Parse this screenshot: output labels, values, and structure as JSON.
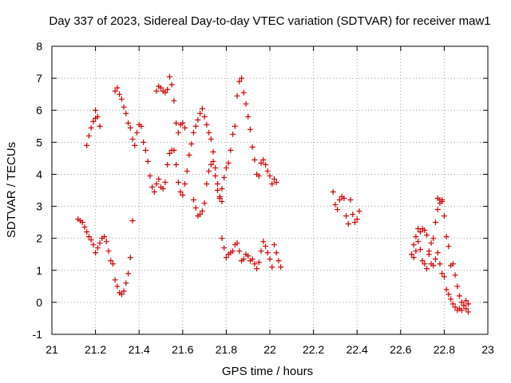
{
  "chart_data": {
    "type": "scatter",
    "title": "Day 337 of 2023, Sidereal Day-to-day VTEC variation (SDTVAR) for receiver maw1",
    "xlabel": "GPS time / hours",
    "ylabel": "SDTVAR / TECUs",
    "xlim": [
      21,
      23
    ],
    "ylim": [
      -1,
      8
    ],
    "xticks": [
      21,
      21.2,
      21.4,
      21.6,
      21.8,
      22,
      22.2,
      22.4,
      22.6,
      22.8,
      23
    ],
    "xtick_labels": [
      "21",
      "21.2",
      "21.4",
      "21.6",
      "21.8",
      "22",
      "22.2",
      "22.4",
      "22.6",
      "22.8",
      "23"
    ],
    "yticks": [
      -1,
      0,
      1,
      2,
      3,
      4,
      5,
      6,
      7,
      8
    ],
    "ytick_labels": [
      "-1",
      "0",
      "1",
      "2",
      "3",
      "4",
      "5",
      "6",
      "7",
      "8"
    ],
    "grid": true,
    "marker": "plus",
    "color": "#d40000",
    "series": [
      {
        "name": "maw1",
        "points": [
          [
            21.12,
            2.6
          ],
          [
            21.13,
            2.55
          ],
          [
            21.14,
            2.5
          ],
          [
            21.15,
            2.35
          ],
          [
            21.16,
            2.2
          ],
          [
            21.17,
            2.05
          ],
          [
            21.18,
            1.95
          ],
          [
            21.19,
            1.8
          ],
          [
            21.2,
            1.55
          ],
          [
            21.21,
            1.7
          ],
          [
            21.22,
            1.85
          ],
          [
            21.23,
            2.0
          ],
          [
            21.24,
            2.05
          ],
          [
            21.25,
            1.9
          ],
          [
            21.26,
            1.6
          ],
          [
            21.27,
            1.3
          ],
          [
            21.28,
            1.2
          ],
          [
            21.16,
            4.9
          ],
          [
            21.17,
            5.2
          ],
          [
            21.18,
            5.45
          ],
          [
            21.19,
            5.65
          ],
          [
            21.2,
            5.75
          ],
          [
            21.2,
            6.0
          ],
          [
            21.22,
            5.5
          ],
          [
            21.21,
            5.8
          ],
          [
            21.29,
            0.7
          ],
          [
            21.3,
            0.5
          ],
          [
            21.31,
            0.3
          ],
          [
            21.32,
            0.25
          ],
          [
            21.33,
            0.35
          ],
          [
            21.34,
            0.6
          ],
          [
            21.35,
            0.9
          ],
          [
            21.36,
            1.4
          ],
          [
            21.37,
            2.55
          ],
          [
            21.29,
            6.6
          ],
          [
            21.3,
            6.7
          ],
          [
            21.31,
            6.5
          ],
          [
            21.32,
            6.35
          ],
          [
            21.33,
            6.1
          ],
          [
            21.34,
            5.9
          ],
          [
            21.35,
            5.6
          ],
          [
            21.36,
            5.45
          ],
          [
            21.37,
            5.1
          ],
          [
            21.38,
            4.9
          ],
          [
            21.39,
            5.3
          ],
          [
            21.4,
            5.55
          ],
          [
            21.41,
            5.5
          ],
          [
            21.42,
            5.0
          ],
          [
            21.43,
            4.75
          ],
          [
            21.44,
            4.4
          ],
          [
            21.45,
            3.95
          ],
          [
            21.46,
            3.6
          ],
          [
            21.47,
            3.45
          ],
          [
            21.48,
            3.7
          ],
          [
            21.49,
            3.85
          ],
          [
            21.5,
            3.6
          ],
          [
            21.51,
            3.55
          ],
          [
            21.52,
            3.75
          ],
          [
            21.53,
            4.3
          ],
          [
            21.48,
            6.6
          ],
          [
            21.49,
            6.75
          ],
          [
            21.5,
            6.7
          ],
          [
            21.51,
            6.6
          ],
          [
            21.52,
            6.55
          ],
          [
            21.53,
            6.65
          ],
          [
            21.54,
            7.05
          ],
          [
            21.55,
            6.8
          ],
          [
            21.56,
            6.3
          ],
          [
            21.57,
            5.6
          ],
          [
            21.58,
            5.3
          ],
          [
            21.59,
            5.55
          ],
          [
            21.6,
            5.6
          ],
          [
            21.61,
            5.45
          ],
          [
            21.54,
            4.65
          ],
          [
            21.55,
            4.75
          ],
          [
            21.56,
            4.75
          ],
          [
            21.57,
            4.3
          ],
          [
            21.58,
            3.75
          ],
          [
            21.59,
            3.45
          ],
          [
            21.6,
            3.35
          ],
          [
            21.61,
            3.7
          ],
          [
            21.62,
            4.1
          ],
          [
            21.63,
            4.6
          ],
          [
            21.64,
            4.95
          ],
          [
            21.65,
            5.3
          ],
          [
            21.66,
            5.5
          ],
          [
            21.67,
            5.7
          ],
          [
            21.68,
            5.9
          ],
          [
            21.69,
            6.05
          ],
          [
            21.7,
            5.8
          ],
          [
            21.71,
            5.55
          ],
          [
            21.72,
            5.3
          ],
          [
            21.73,
            5.1
          ],
          [
            21.74,
            4.7
          ],
          [
            21.75,
            4.2
          ],
          [
            21.76,
            3.7
          ],
          [
            21.77,
            3.3
          ],
          [
            21.78,
            3.15
          ],
          [
            21.65,
            3.2
          ],
          [
            21.66,
            2.95
          ],
          [
            21.67,
            2.7
          ],
          [
            21.68,
            2.75
          ],
          [
            21.69,
            2.85
          ],
          [
            21.7,
            3.1
          ],
          [
            21.71,
            3.7
          ],
          [
            21.72,
            4.1
          ],
          [
            21.73,
            4.3
          ],
          [
            21.74,
            4.4
          ],
          [
            21.75,
            3.95
          ],
          [
            21.76,
            3.5
          ],
          [
            21.77,
            3.25
          ],
          [
            21.78,
            3.55
          ],
          [
            21.79,
            3.9
          ],
          [
            21.78,
            2.0
          ],
          [
            21.79,
            1.7
          ],
          [
            21.8,
            1.4
          ],
          [
            21.81,
            1.5
          ],
          [
            21.82,
            1.55
          ],
          [
            21.83,
            1.6
          ],
          [
            21.84,
            1.8
          ],
          [
            21.85,
            1.85
          ],
          [
            21.86,
            1.6
          ],
          [
            21.87,
            1.3
          ],
          [
            21.88,
            1.35
          ],
          [
            21.89,
            1.5
          ],
          [
            21.9,
            1.45
          ],
          [
            21.91,
            1.3
          ],
          [
            21.92,
            1.35
          ],
          [
            21.93,
            1.2
          ],
          [
            21.94,
            1.05
          ],
          [
            21.95,
            1.25
          ],
          [
            21.96,
            1.6
          ],
          [
            21.97,
            1.9
          ],
          [
            21.98,
            1.75
          ],
          [
            21.99,
            1.55
          ],
          [
            22.0,
            1.35
          ],
          [
            22.01,
            1.1
          ],
          [
            22.02,
            1.8
          ],
          [
            22.03,
            1.55
          ],
          [
            22.04,
            1.3
          ],
          [
            22.05,
            1.1
          ],
          [
            21.8,
            4.2
          ],
          [
            21.81,
            4.35
          ],
          [
            21.82,
            4.75
          ],
          [
            21.83,
            5.25
          ],
          [
            21.84,
            5.5
          ],
          [
            21.85,
            6.45
          ],
          [
            21.86,
            6.9
          ],
          [
            21.87,
            7.0
          ],
          [
            21.88,
            6.55
          ],
          [
            21.89,
            6.2
          ],
          [
            21.9,
            5.8
          ],
          [
            21.91,
            5.4
          ],
          [
            21.92,
            4.85
          ],
          [
            21.93,
            4.45
          ],
          [
            21.94,
            4.0
          ],
          [
            21.95,
            3.95
          ],
          [
            21.96,
            4.35
          ],
          [
            21.97,
            4.45
          ],
          [
            21.98,
            4.3
          ],
          [
            21.99,
            4.1
          ],
          [
            22.0,
            3.95
          ],
          [
            22.01,
            3.7
          ],
          [
            22.02,
            3.85
          ],
          [
            22.03,
            3.75
          ],
          [
            22.29,
            3.45
          ],
          [
            22.3,
            3.05
          ],
          [
            22.31,
            2.9
          ],
          [
            22.32,
            3.2
          ],
          [
            22.33,
            3.3
          ],
          [
            22.34,
            3.25
          ],
          [
            22.35,
            2.7
          ],
          [
            22.36,
            2.45
          ],
          [
            22.37,
            3.2
          ],
          [
            22.38,
            2.75
          ],
          [
            22.39,
            2.5
          ],
          [
            22.4,
            2.6
          ],
          [
            22.41,
            2.85
          ],
          [
            22.65,
            1.5
          ],
          [
            22.66,
            1.4
          ],
          [
            22.67,
            1.6
          ],
          [
            22.68,
            1.9
          ],
          [
            22.69,
            2.2
          ],
          [
            22.7,
            2.3
          ],
          [
            22.71,
            2.25
          ],
          [
            22.72,
            2.1
          ],
          [
            22.73,
            1.6
          ],
          [
            22.74,
            1.2
          ],
          [
            22.75,
            1.15
          ],
          [
            22.76,
            1.35
          ],
          [
            22.77,
            1.55
          ],
          [
            22.78,
            1.2
          ],
          [
            22.79,
            0.9
          ],
          [
            22.8,
            0.8
          ],
          [
            22.81,
            0.4
          ],
          [
            22.82,
            0.25
          ],
          [
            22.83,
            0.1
          ],
          [
            22.84,
            -0.05
          ],
          [
            22.85,
            -0.15
          ],
          [
            22.86,
            -0.25
          ],
          [
            22.87,
            -0.2
          ],
          [
            22.88,
            -0.25
          ],
          [
            22.89,
            -0.1
          ],
          [
            22.9,
            -0.2
          ],
          [
            22.91,
            -0.3
          ],
          [
            22.66,
            1.8
          ],
          [
            22.67,
            2.05
          ],
          [
            22.68,
            2.3
          ],
          [
            22.69,
            1.65
          ],
          [
            22.7,
            1.3
          ],
          [
            22.71,
            1.2
          ],
          [
            22.72,
            1.05
          ],
          [
            22.73,
            1.5
          ],
          [
            22.74,
            1.85
          ],
          [
            22.75,
            2.0
          ],
          [
            22.76,
            2.5
          ],
          [
            22.77,
            2.9
          ],
          [
            22.78,
            3.2
          ],
          [
            22.79,
            3.15
          ],
          [
            22.8,
            2.7
          ],
          [
            22.81,
            2.05
          ],
          [
            22.82,
            1.75
          ],
          [
            22.83,
            1.15
          ],
          [
            22.84,
            1.2
          ],
          [
            22.85,
            0.85
          ],
          [
            22.86,
            0.5
          ],
          [
            22.87,
            0.2
          ],
          [
            22.88,
            0.0
          ],
          [
            22.89,
            -0.1
          ],
          [
            22.9,
            0.05
          ],
          [
            22.91,
            -0.05
          ],
          [
            22.77,
            3.25
          ],
          [
            22.78,
            3.1
          ],
          [
            22.79,
            3.2
          ]
        ]
      }
    ]
  }
}
